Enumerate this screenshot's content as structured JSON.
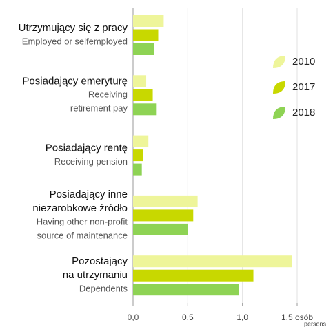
{
  "chart_data": {
    "type": "bar",
    "orientation": "horizontal",
    "categories": [
      [
        "Utrzymujący się z pracy"
      ],
      [
        "Posiadający emeryturę"
      ],
      [
        "Posiadający rentę"
      ],
      [
        "Posiadający inne",
        "niezarobkowe źródło"
      ],
      [
        "Pozostający",
        "na utrzymaniu"
      ]
    ],
    "category_subtitles": [
      [
        "Employed or selfemployed"
      ],
      [
        "Receiving",
        "retirement pay"
      ],
      [
        "Receiving pension"
      ],
      [
        "Having other non-profit",
        "source of maintenance"
      ],
      [
        "Dependents"
      ]
    ],
    "series": [
      {
        "name": "2010",
        "color": "#eef59a",
        "values": [
          0.28,
          0.12,
          0.14,
          0.59,
          1.45
        ]
      },
      {
        "name": "2017",
        "color": "#c8d800",
        "values": [
          0.23,
          0.18,
          0.09,
          0.55,
          1.1
        ]
      },
      {
        "name": "2018",
        "color": "#8ed354",
        "values": [
          0.19,
          0.21,
          0.08,
          0.5,
          0.97
        ]
      }
    ],
    "xlim": [
      0,
      1.5
    ],
    "xticks": [
      {
        "value": 0,
        "label": "0,0"
      },
      {
        "value": 0.5,
        "label": "0,5"
      },
      {
        "value": 1,
        "label": "1,0"
      },
      {
        "value": 1.5,
        "label": "1,5 osób"
      }
    ],
    "xlabel": "persons",
    "grid": true
  }
}
